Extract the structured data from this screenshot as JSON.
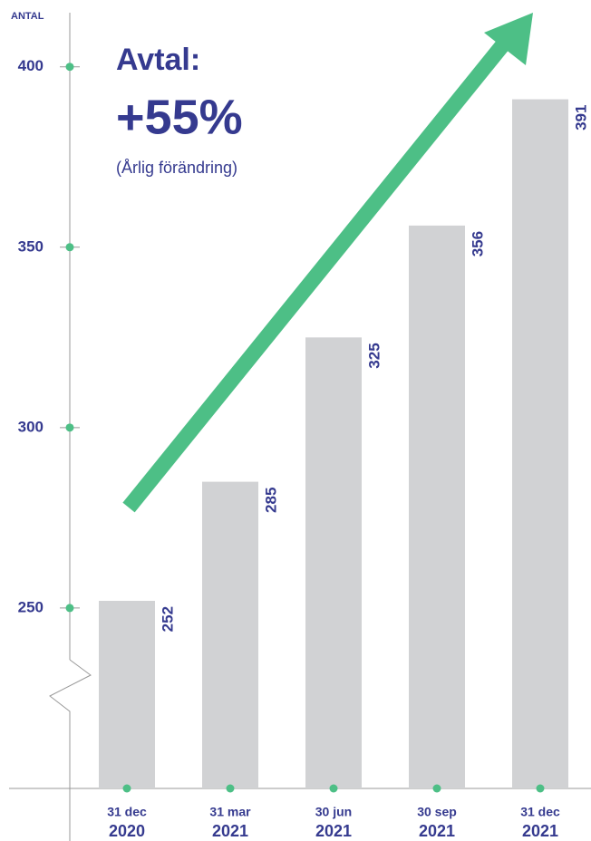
{
  "chart_data": {
    "type": "bar",
    "y_axis_label": "ANTAL",
    "annotations": [
      "Avtal:",
      "+55%",
      "(Årlig förändring)"
    ],
    "categories": [
      [
        "31 dec",
        "2020"
      ],
      [
        "31 mar",
        "2021"
      ],
      [
        "30 jun",
        "2021"
      ],
      [
        "30 sep",
        "2021"
      ],
      [
        "31 dec",
        "2021"
      ]
    ],
    "values": [
      252,
      285,
      325,
      356,
      391
    ],
    "color": "#d1d2d4",
    "ylim": [
      200,
      415
    ],
    "yticks": [
      250,
      300,
      350,
      400
    ]
  }
}
